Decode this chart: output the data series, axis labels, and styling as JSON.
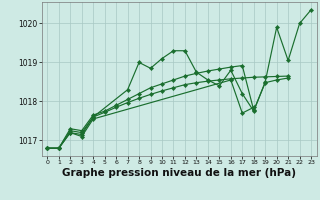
{
  "background_color": "#ceeae4",
  "grid_color": "#a8c8c4",
  "line_color": "#1a6e2e",
  "xlabel": "Graphe pression niveau de la mer (hPa)",
  "xlabel_fontsize": 7.5,
  "ylim": [
    1016.6,
    1020.55
  ],
  "xlim": [
    -0.5,
    23.5
  ],
  "yticks": [
    1017,
    1018,
    1019,
    1020
  ],
  "xticks": [
    0,
    1,
    2,
    3,
    4,
    5,
    6,
    7,
    8,
    9,
    10,
    11,
    12,
    13,
    14,
    15,
    16,
    17,
    18,
    19,
    20,
    21,
    22,
    23
  ],
  "series": [
    {
      "x": [
        0,
        1,
        2,
        3,
        4,
        7,
        8,
        9,
        10,
        11,
        12,
        13,
        14,
        15,
        16,
        17,
        18,
        19,
        20,
        21,
        22,
        23
      ],
      "y": [
        1016.8,
        1016.8,
        1017.2,
        1017.15,
        1017.6,
        1018.3,
        1019.0,
        1018.85,
        1019.1,
        1019.3,
        1019.3,
        1018.75,
        1018.55,
        1018.4,
        1018.8,
        1018.2,
        1017.75,
        1018.5,
        1019.9,
        1019.05,
        1020.0,
        1020.35
      ]
    },
    {
      "x": [
        0,
        1,
        2,
        3,
        4,
        16,
        17,
        18
      ],
      "y": [
        1016.8,
        1016.8,
        1017.2,
        1017.1,
        1017.55,
        1018.55,
        1017.7,
        1017.85
      ]
    },
    {
      "x": [
        0,
        1,
        2,
        3,
        4,
        5,
        6,
        7,
        8,
        9,
        10,
        11,
        12,
        13,
        14,
        15,
        16,
        17,
        18,
        19,
        20,
        21
      ],
      "y": [
        1016.8,
        1016.8,
        1017.3,
        1017.25,
        1017.65,
        1017.75,
        1017.9,
        1018.05,
        1018.2,
        1018.35,
        1018.45,
        1018.55,
        1018.65,
        1018.72,
        1018.78,
        1018.83,
        1018.88,
        1018.92,
        1017.77,
        1018.48,
        1018.55,
        1018.6
      ]
    },
    {
      "x": [
        0,
        1,
        2,
        3,
        4,
        5,
        6,
        7,
        8,
        9,
        10,
        11,
        12,
        13,
        14,
        15,
        16,
        17,
        18,
        19,
        20,
        21
      ],
      "y": [
        1016.8,
        1016.8,
        1017.25,
        1017.2,
        1017.6,
        1017.72,
        1017.85,
        1017.97,
        1018.08,
        1018.18,
        1018.27,
        1018.35,
        1018.43,
        1018.48,
        1018.52,
        1018.55,
        1018.58,
        1018.6,
        1018.62,
        1018.63,
        1018.64,
        1018.65
      ]
    }
  ]
}
